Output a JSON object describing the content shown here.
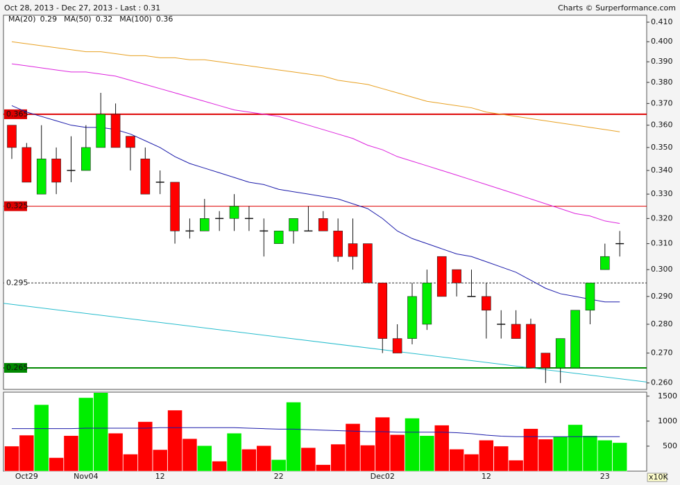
{
  "chart_data": {
    "type": "candlestick",
    "title": "Oct 28, 2013 - Dec 27, 2013 - Last : 0.31",
    "credit": "Charts © Surperformance.com",
    "log_scale": true,
    "up_color": "#00ee00",
    "down_color": "#ff0000",
    "categories": [
      null,
      "Oct29",
      null,
      null,
      null,
      "Nov04",
      null,
      null,
      null,
      null,
      "12",
      null,
      null,
      null,
      null,
      null,
      null,
      null,
      "22",
      null,
      null,
      null,
      null,
      null,
      null,
      "Dec02",
      null,
      null,
      null,
      null,
      null,
      null,
      "12",
      null,
      null,
      null,
      null,
      null,
      null,
      null,
      "23",
      null
    ],
    "open": [
      0.36,
      0.35,
      0.33,
      0.345,
      0.34,
      0.34,
      0.35,
      0.365,
      0.355,
      0.345,
      0.335,
      0.335,
      0.315,
      0.315,
      0.32,
      0.32,
      0.32,
      0.315,
      0.31,
      0.315,
      0.315,
      0.32,
      0.315,
      0.31,
      0.31,
      0.295,
      0.275,
      0.275,
      0.28,
      0.305,
      0.3,
      0.29,
      0.29,
      0.28,
      0.28,
      0.28,
      0.27,
      0.265,
      0.265,
      0.285,
      0.3,
      0.31
    ],
    "high": [
      0.36,
      0.352,
      0.36,
      0.35,
      0.355,
      0.36,
      0.375,
      0.37,
      0.355,
      0.35,
      0.34,
      0.335,
      0.32,
      0.328,
      0.323,
      0.33,
      0.325,
      0.32,
      0.315,
      0.32,
      0.325,
      0.323,
      0.32,
      0.32,
      0.31,
      0.295,
      0.28,
      0.295,
      0.3,
      0.305,
      0.3,
      0.3,
      0.295,
      0.285,
      0.285,
      0.282,
      0.27,
      0.275,
      0.285,
      0.295,
      0.31,
      0.315
    ],
    "low": [
      0.345,
      0.335,
      0.33,
      0.33,
      0.335,
      0.34,
      0.35,
      0.35,
      0.34,
      0.33,
      0.33,
      0.31,
      0.312,
      0.315,
      0.315,
      0.315,
      0.315,
      0.305,
      0.31,
      0.31,
      0.315,
      0.315,
      0.303,
      0.3,
      0.295,
      0.27,
      0.27,
      0.273,
      0.278,
      0.29,
      0.29,
      0.29,
      0.275,
      0.275,
      0.275,
      0.265,
      0.26,
      0.26,
      0.265,
      0.28,
      0.3,
      0.305
    ],
    "close": [
      0.35,
      0.335,
      0.345,
      0.335,
      0.34,
      0.35,
      0.365,
      0.35,
      0.35,
      0.33,
      0.335,
      0.315,
      0.315,
      0.32,
      0.32,
      0.325,
      0.32,
      0.315,
      0.315,
      0.32,
      0.315,
      0.315,
      0.305,
      0.305,
      0.295,
      0.275,
      0.27,
      0.29,
      0.295,
      0.29,
      0.295,
      0.29,
      0.285,
      0.28,
      0.275,
      0.265,
      0.265,
      0.275,
      0.285,
      0.295,
      0.305,
      0.31
    ],
    "ylim": [
      0.2579,
      0.4136
    ],
    "yticks": [
      {
        "value": 0.26,
        "label": "0.260"
      },
      {
        "value": 0.27,
        "label": "0.270"
      },
      {
        "value": 0.28,
        "label": "0.280"
      },
      {
        "value": 0.29,
        "label": "0.290"
      },
      {
        "value": 0.3,
        "label": "0.300"
      },
      {
        "value": 0.31,
        "label": "0.310"
      },
      {
        "value": 0.32,
        "label": "0.320"
      },
      {
        "value": 0.33,
        "label": "0.330"
      },
      {
        "value": 0.34,
        "label": "0.340"
      },
      {
        "value": 0.35,
        "label": "0.350"
      },
      {
        "value": 0.36,
        "label": "0.360"
      },
      {
        "value": 0.37,
        "label": "0.370"
      },
      {
        "value": 0.38,
        "label": "0.380"
      },
      {
        "value": 0.39,
        "label": "0.390"
      },
      {
        "value": 0.4,
        "label": "0.400"
      },
      {
        "value": 0.41,
        "label": "0.410"
      }
    ],
    "series": [
      {
        "name": "MA(20)",
        "last": 0.29,
        "color": "#1a1aaa",
        "values": [
          0.369,
          0.366,
          0.364,
          0.362,
          0.36,
          0.359,
          0.359,
          0.358,
          0.356,
          0.353,
          0.35,
          0.346,
          0.343,
          0.341,
          0.339,
          0.337,
          0.335,
          0.334,
          0.332,
          0.331,
          0.33,
          0.329,
          0.328,
          0.326,
          0.324,
          0.32,
          0.315,
          0.312,
          0.31,
          0.308,
          0.306,
          0.305,
          0.303,
          0.301,
          0.299,
          0.296,
          0.293,
          0.291,
          0.29,
          0.289,
          0.288,
          0.288
        ]
      },
      {
        "name": "MA(50)",
        "last": 0.32,
        "color": "#dd22dd",
        "values": [
          0.389,
          0.388,
          0.387,
          0.386,
          0.385,
          0.385,
          0.384,
          0.383,
          0.381,
          0.379,
          0.377,
          0.375,
          0.373,
          0.371,
          0.369,
          0.367,
          0.366,
          0.365,
          0.364,
          0.362,
          0.36,
          0.358,
          0.356,
          0.354,
          0.351,
          0.349,
          0.346,
          0.344,
          0.342,
          0.34,
          0.338,
          0.336,
          0.334,
          0.332,
          0.33,
          0.328,
          0.326,
          0.324,
          0.322,
          0.321,
          0.319,
          0.318
        ]
      },
      {
        "name": "MA(100)",
        "last": 0.36,
        "color": "#e8a020",
        "values": [
          0.4,
          0.399,
          0.398,
          0.397,
          0.396,
          0.395,
          0.395,
          0.394,
          0.393,
          0.393,
          0.392,
          0.392,
          0.391,
          0.391,
          0.39,
          0.389,
          0.388,
          0.387,
          0.386,
          0.385,
          0.384,
          0.383,
          0.381,
          0.38,
          0.379,
          0.377,
          0.375,
          0.373,
          0.371,
          0.37,
          0.369,
          0.368,
          0.366,
          0.365,
          0.364,
          0.363,
          0.362,
          0.361,
          0.36,
          0.359,
          0.358,
          0.357
        ]
      }
    ],
    "trendline": {
      "color": "#22bbcc",
      "values": [
        0.2875,
        0.2603
      ]
    },
    "levels": [
      {
        "value": 0.365,
        "color": "#dd0000",
        "width": 2
      },
      {
        "value": 0.325,
        "color": "#dd0000",
        "width": 1
      },
      {
        "value": 0.295,
        "color": "#333333",
        "width": 1,
        "dashed": true
      },
      {
        "value": 0.265,
        "color": "#008800",
        "width": 2
      }
    ],
    "volume": {
      "unit": "x10K",
      "ylim": [
        0,
        1580
      ],
      "yticks": [
        500,
        1000,
        1500
      ],
      "values": [
        500,
        720,
        1330,
        270,
        710,
        1470,
        1570,
        760,
        340,
        990,
        430,
        1220,
        650,
        510,
        200,
        760,
        440,
        510,
        230,
        1380,
        470,
        130,
        540,
        950,
        520,
        1080,
        730,
        1060,
        710,
        920,
        440,
        340,
        620,
        500,
        220,
        850,
        640,
        690,
        930,
        710,
        620,
        570
      ],
      "colors": [
        "#ff0000",
        "#ff0000",
        "#00ee00",
        "#ff0000",
        "#ff0000",
        "#00ee00",
        "#00ee00",
        "#ff0000",
        "#ff0000",
        "#ff0000",
        "#ff0000",
        "#ff0000",
        "#ff0000",
        "#00ee00",
        "#ff0000",
        "#00ee00",
        "#ff0000",
        "#ff0000",
        "#00ee00",
        "#00ee00",
        "#ff0000",
        "#ff0000",
        "#ff0000",
        "#ff0000",
        "#ff0000",
        "#ff0000",
        "#ff0000",
        "#00ee00",
        "#00ee00",
        "#ff0000",
        "#ff0000",
        "#ff0000",
        "#ff0000",
        "#ff0000",
        "#ff0000",
        "#ff0000",
        "#ff0000",
        "#00ee00",
        "#00ee00",
        "#00ee00",
        "#00ee00",
        "#00ee00"
      ],
      "ma_color": "#1a1aaa",
      "ma": [
        850,
        850,
        850,
        850,
        850,
        860,
        860,
        860,
        860,
        860,
        870,
        870,
        870,
        870,
        870,
        870,
        860,
        850,
        840,
        840,
        830,
        820,
        810,
        800,
        790,
        790,
        780,
        780,
        780,
        780,
        770,
        750,
        720,
        700,
        690,
        690,
        690,
        690,
        690,
        690,
        690,
        690
      ]
    }
  }
}
